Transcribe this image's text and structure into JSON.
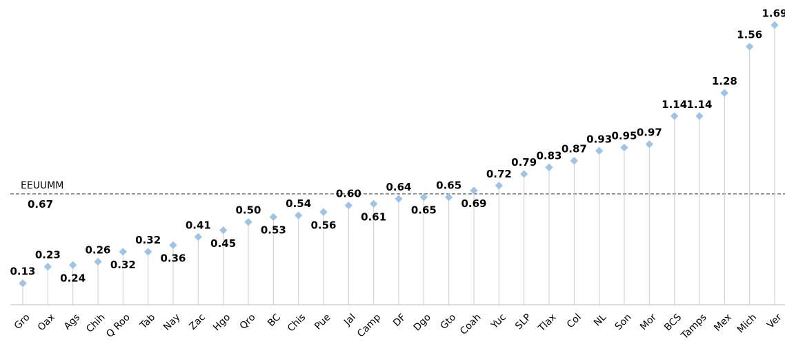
{
  "chart_data": {
    "type": "lollipop",
    "categories": [
      "Gro",
      "Oax",
      "Ags",
      "Chih",
      "Q Roo",
      "Tab",
      "Nay",
      "Zac",
      "Hgo",
      "Qro",
      "BC",
      "Chis",
      "Pue",
      "Jal",
      "Camp",
      "DF",
      "Dgo",
      "Gto",
      "Coah",
      "Yuc",
      "SLP",
      "Tlax",
      "Col",
      "NL",
      "Son",
      "Mor",
      "BCS",
      "Tamps",
      "Mex",
      "Mich",
      "Ver"
    ],
    "values": [
      0.13,
      0.23,
      0.24,
      0.26,
      0.32,
      0.32,
      0.36,
      0.41,
      0.45,
      0.5,
      0.53,
      0.54,
      0.56,
      0.6,
      0.61,
      0.64,
      0.65,
      0.65,
      0.69,
      0.72,
      0.79,
      0.83,
      0.87,
      0.93,
      0.95,
      0.97,
      1.14,
      1.14,
      1.28,
      1.56,
      1.69
    ],
    "value_labels": [
      "0.13",
      "0.23",
      "0.24",
      "0.26",
      "0.32",
      "0.32",
      "0.36",
      "0.41",
      "0.45",
      "0.50",
      "0.53",
      "0.54",
      "0.56",
      "0.60",
      "0.61",
      "0.64",
      "0.65",
      "0.65",
      "0.69",
      "0.72",
      "0.79",
      "0.83",
      "0.87",
      "0.93",
      "0.95",
      "0.97",
      "1.14",
      "1.14",
      "1.28",
      "1.56",
      "1.69"
    ],
    "color": "#9dc3e6",
    "ylim": [
      0,
      1.8
    ],
    "reference": {
      "value": 0.67,
      "label": "EEUUMM"
    }
  }
}
